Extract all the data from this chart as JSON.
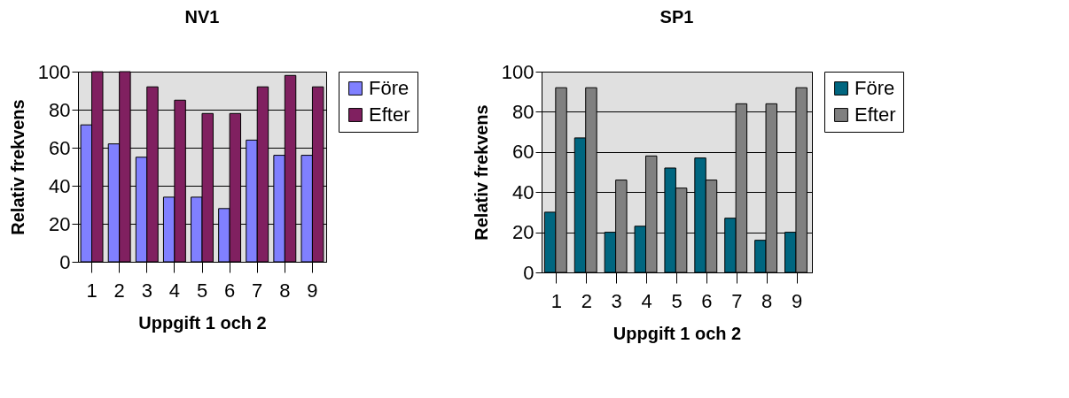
{
  "chart_data": [
    {
      "type": "bar",
      "title": "NV1",
      "xlabel": "Uppgift 1 och 2",
      "ylabel": "Relativ frekvens",
      "categories": [
        "1",
        "2",
        "3",
        "4",
        "5",
        "6",
        "7",
        "8",
        "9"
      ],
      "series": [
        {
          "name": "Före",
          "color": "#8080ff",
          "values": [
            72,
            62,
            55,
            34,
            34,
            28,
            64,
            56,
            56
          ]
        },
        {
          "name": "Efter",
          "color": "#802060",
          "values": [
            100,
            100,
            92,
            85,
            78,
            78,
            92,
            98,
            92
          ]
        }
      ],
      "ylim": [
        0,
        100
      ],
      "yticks": [
        0,
        20,
        40,
        60,
        80,
        100
      ],
      "grid": "y",
      "legend": "right"
    },
    {
      "type": "bar",
      "title": "SP1",
      "xlabel": "Uppgift 1 och 2",
      "ylabel": "Relativ frekvens",
      "categories": [
        "1",
        "2",
        "3",
        "4",
        "5",
        "6",
        "7",
        "8",
        "9"
      ],
      "series": [
        {
          "name": "Före",
          "color": "#006680",
          "values": [
            30,
            67,
            20,
            23,
            52,
            57,
            27,
            16,
            20
          ]
        },
        {
          "name": "Efter",
          "color": "#808080",
          "values": [
            92,
            92,
            46,
            58,
            42,
            46,
            84,
            84,
            92
          ]
        }
      ],
      "ylim": [
        0,
        100
      ],
      "yticks": [
        0,
        20,
        40,
        60,
        80,
        100
      ],
      "grid": "y",
      "legend": "right"
    }
  ]
}
